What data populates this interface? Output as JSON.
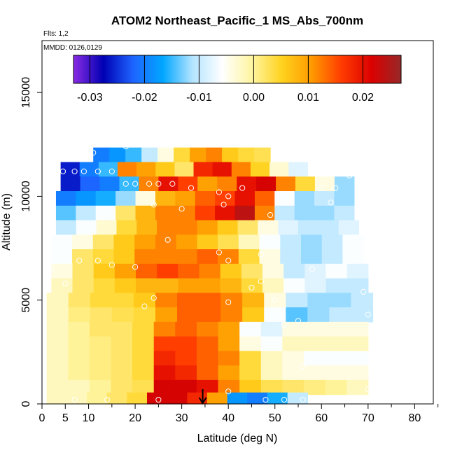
{
  "chart_data": {
    "type": "heatmap",
    "title": "ATOM2 Northeast_Pacific_1 MS_Abs_700nm",
    "flights_label": "Flts: 1,2",
    "date_label": "MMDD: 0126,0129",
    "xlabel": "Latitude (deg N)",
    "ylabel": "Altitude (m)",
    "xlim": [
      0,
      84
    ],
    "ylim": [
      0,
      17500
    ],
    "x_ticks": [
      0,
      5,
      10,
      20,
      30,
      40,
      50,
      60,
      70,
      80
    ],
    "x_minor_ticks": [
      15,
      25,
      35,
      45,
      55,
      65,
      75,
      85
    ],
    "y_ticks": [
      0,
      5000,
      10000,
      15000
    ],
    "colorbar": {
      "range": [
        -0.033,
        0.027
      ],
      "tick_values": [
        -0.03,
        -0.02,
        -0.01,
        0.0,
        0.01,
        0.02
      ],
      "tick_labels": [
        "-0.03",
        "-0.02",
        "-0.01",
        "0.00",
        "0.01",
        "0.02"
      ],
      "stops": [
        "#8a2be2",
        "#0000b4",
        "#1e64ff",
        "#00a6ff",
        "#b4e4ff",
        "#ffffff",
        "#fff5a0",
        "#ffd21e",
        "#ff9a00",
        "#ff3c00",
        "#dc0000",
        "#962828"
      ]
    },
    "grid": false,
    "legend_position": "top",
    "flight_track_marker_latitude": 34.5,
    "data_layers": [
      {
        "alt": 12000,
        "lat_min": 11,
        "lat_max": 49,
        "values": [
          -0.02,
          -0.018,
          -0.015,
          -0.01,
          -0.004,
          0.004,
          0.01,
          0.012,
          0.006,
          0.004,
          0.003
        ]
      },
      {
        "alt": 11300,
        "lat_min": 4,
        "lat_max": 57,
        "values": [
          -0.026,
          -0.02,
          -0.015,
          0.012,
          0.01,
          0.006,
          0.002,
          0.018,
          0.02,
          0.012,
          0.005,
          -0.003,
          -0.008
        ]
      },
      {
        "alt": 10600,
        "lat_min": 4,
        "lat_max": 67,
        "values": [
          -0.026,
          -0.022,
          -0.02,
          -0.015,
          0.012,
          0.02,
          0.016,
          0.01,
          0.012,
          0.02,
          0.022,
          0.012,
          0.004,
          -0.004,
          -0.012
        ]
      },
      {
        "alt": 9900,
        "lat_min": 3,
        "lat_max": 67,
        "values": [
          -0.02,
          -0.018,
          -0.016,
          -0.012,
          -0.004,
          0.008,
          0.01,
          0.014,
          0.016,
          0.02,
          0.014,
          -0.006,
          -0.012,
          -0.01,
          -0.012
        ]
      },
      {
        "alt": 9200,
        "lat_min": 3,
        "lat_max": 67,
        "values": [
          -0.014,
          -0.01,
          -0.006,
          0.002,
          0.008,
          0.012,
          0.012,
          0.016,
          0.02,
          0.024,
          0.012,
          -0.01,
          -0.012,
          -0.012,
          -0.01
        ]
      },
      {
        "alt": 8500,
        "lat_min": 3,
        "lat_max": 68,
        "values": [
          -0.01,
          -0.006,
          -0.003,
          0.004,
          0.008,
          0.012,
          0.012,
          0.01,
          0.006,
          0.002,
          -0.004,
          -0.008,
          -0.01,
          -0.01,
          -0.008
        ]
      },
      {
        "alt": 7800,
        "lat_min": 2,
        "lat_max": 69,
        "values": [
          -0.006,
          -0.004,
          0.002,
          0.006,
          0.01,
          0.012,
          0.01,
          0.006,
          0.003,
          -0.002,
          -0.006,
          -0.01,
          -0.012,
          -0.01,
          -0.006
        ]
      },
      {
        "alt": 7100,
        "lat_min": 2,
        "lat_max": 69,
        "values": [
          -0.006,
          0.002,
          0.004,
          0.006,
          0.012,
          0.012,
          0.012,
          0.014,
          0.012,
          0.004,
          -0.004,
          -0.01,
          -0.012,
          -0.01,
          -0.006
        ]
      },
      {
        "alt": 6400,
        "lat_min": 2,
        "lat_max": 70,
        "values": [
          -0.004,
          0.002,
          0.006,
          0.01,
          0.014,
          0.016,
          0.014,
          0.012,
          0.006,
          0.002,
          -0.004,
          -0.01,
          -0.008,
          -0.006,
          -0.008
        ]
      },
      {
        "alt": 5700,
        "lat_min": 2,
        "lat_max": 70,
        "values": [
          -0.002,
          0.002,
          0.004,
          0.006,
          0.008,
          0.008,
          0.01,
          0.01,
          0.008,
          0.004,
          -0.002,
          -0.006,
          -0.008,
          -0.01,
          -0.01
        ]
      },
      {
        "alt": 5000,
        "lat_min": 1,
        "lat_max": 71,
        "values": [
          -0.002,
          0.002,
          0.004,
          0.004,
          0.006,
          0.012,
          0.014,
          0.014,
          0.012,
          0.008,
          -0.004,
          -0.01,
          -0.012,
          -0.012,
          -0.01
        ]
      },
      {
        "alt": 4300,
        "lat_min": 1,
        "lat_max": 71,
        "values": [
          -0.002,
          0.001,
          0.002,
          0.003,
          0.004,
          0.01,
          0.014,
          0.014,
          0.012,
          0.006,
          -0.006,
          -0.014,
          -0.012,
          -0.01,
          -0.01
        ]
      },
      {
        "alt": 3600,
        "lat_min": 1,
        "lat_max": 70,
        "values": [
          -0.002,
          0.0,
          0.002,
          0.002,
          0.004,
          0.012,
          0.014,
          0.012,
          0.01,
          -0.006,
          -0.008,
          -0.004,
          -0.004,
          -0.004,
          -0.004
        ]
      },
      {
        "alt": 2900,
        "lat_min": 1,
        "lat_max": 70,
        "values": [
          -0.002,
          0.0,
          0.001,
          0.002,
          0.004,
          0.016,
          0.016,
          0.014,
          0.01,
          -0.004,
          -0.006,
          -0.002,
          -0.002,
          -0.002,
          -0.002
        ]
      },
      {
        "alt": 2200,
        "lat_min": 1,
        "lat_max": 70,
        "values": [
          -0.002,
          0.0,
          0.001,
          0.002,
          0.004,
          0.018,
          0.016,
          0.014,
          0.012,
          0.004,
          -0.002,
          -0.004,
          -0.006,
          -0.006,
          -0.006
        ]
      },
      {
        "alt": 1500,
        "lat_min": 1,
        "lat_max": 70,
        "values": [
          -0.002,
          0.0,
          0.001,
          0.002,
          0.004,
          0.02,
          0.018,
          0.014,
          0.01,
          0.004,
          -0.002,
          -0.004,
          -0.004,
          -0.004,
          -0.004
        ]
      },
      {
        "alt": 800,
        "lat_min": 1,
        "lat_max": 70,
        "values": [
          -0.002,
          -0.002,
          0.0,
          0.002,
          0.003,
          0.022,
          0.022,
          0.02,
          0.012,
          0.006,
          0.003,
          0.002,
          0.001,
          0.0,
          -0.002
        ]
      },
      {
        "alt": 200,
        "lat_min": 1,
        "lat_max": 57,
        "values": [
          -0.002,
          -0.002,
          0.0,
          0.002,
          0.004,
          0.022,
          0.022,
          0.018,
          0.01,
          -0.018,
          -0.02,
          -0.016,
          -0.01
        ]
      }
    ],
    "sample_points": [
      [
        18,
        12400
      ],
      [
        11,
        12100
      ],
      [
        4.5,
        11200
      ],
      [
        7,
        11200
      ],
      [
        9,
        11200
      ],
      [
        12,
        11200
      ],
      [
        15,
        11200
      ],
      [
        18,
        10600
      ],
      [
        20,
        10600
      ],
      [
        23,
        10600
      ],
      [
        25,
        10600
      ],
      [
        28,
        10600
      ],
      [
        32,
        10400
      ],
      [
        38,
        10200
      ],
      [
        40,
        10000
      ],
      [
        43,
        10400
      ],
      [
        60,
        10400
      ],
      [
        63,
        10400
      ],
      [
        66,
        11000
      ],
      [
        62,
        9700
      ],
      [
        24,
        9600
      ],
      [
        30,
        9400
      ],
      [
        39,
        9600
      ],
      [
        49,
        9100
      ],
      [
        27,
        7900
      ],
      [
        38,
        7300
      ],
      [
        40,
        6900
      ],
      [
        47,
        7200
      ],
      [
        15,
        6700
      ],
      [
        20,
        6600
      ],
      [
        12,
        6900
      ],
      [
        8,
        6900
      ],
      [
        2,
        6500
      ],
      [
        58,
        6500
      ],
      [
        45,
        5600
      ],
      [
        47,
        5900
      ],
      [
        5,
        5800
      ],
      [
        22,
        4700
      ],
      [
        24,
        5100
      ],
      [
        40,
        4900
      ],
      [
        50,
        5000
      ],
      [
        52,
        3800
      ],
      [
        55,
        4000
      ],
      [
        69,
        5400
      ],
      [
        70,
        4300
      ],
      [
        56,
        1800
      ],
      [
        40,
        600
      ],
      [
        70,
        700
      ],
      [
        25,
        200
      ],
      [
        48,
        200
      ],
      [
        52,
        200
      ],
      [
        56,
        200
      ],
      [
        7,
        200
      ],
      [
        14,
        200
      ]
    ]
  }
}
